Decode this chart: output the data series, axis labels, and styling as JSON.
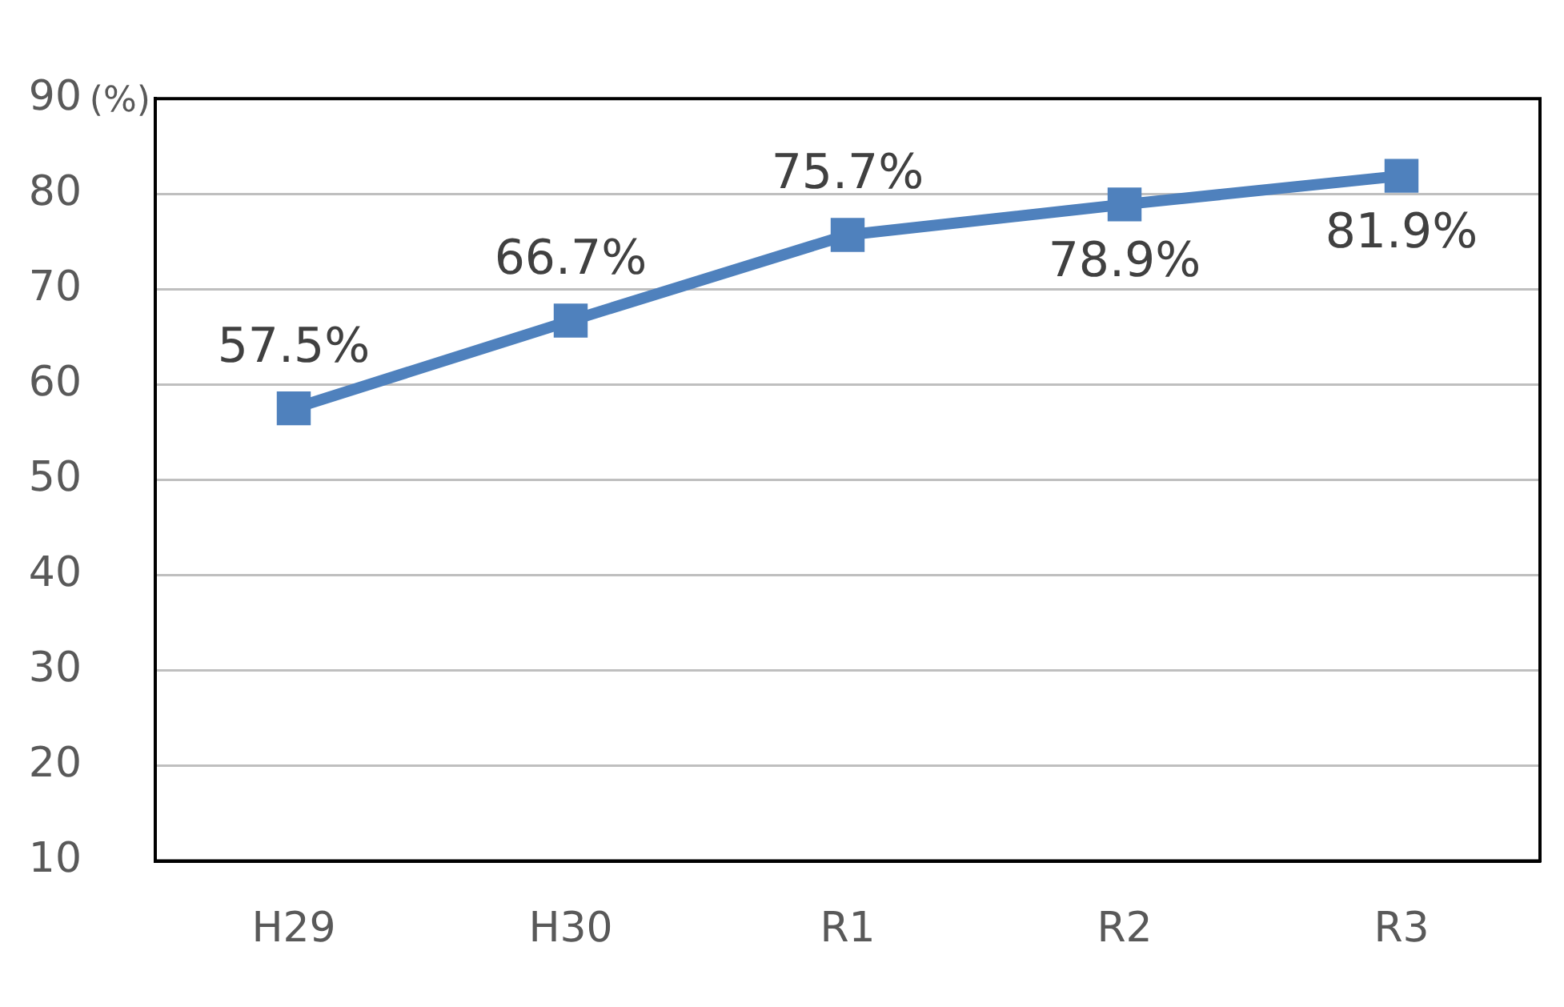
{
  "chart_data": {
    "type": "line",
    "ylabel": "(%)",
    "categories": [
      "H29",
      "H30",
      "R1",
      "R2",
      "R3"
    ],
    "series": [
      {
        "color": "#4f81bd",
        "values": [
          57.5,
          66.7,
          75.7,
          78.9,
          81.9
        ],
        "value_labels": [
          "57.5%",
          "66.7%",
          "75.7%",
          "78.9%",
          "81.9%"
        ]
      }
    ],
    "ylim": [
      10,
      90
    ],
    "yticks": [
      10,
      20,
      30,
      40,
      50,
      60,
      70,
      80,
      90
    ],
    "grid": "y",
    "marker": "square",
    "legend": false
  }
}
